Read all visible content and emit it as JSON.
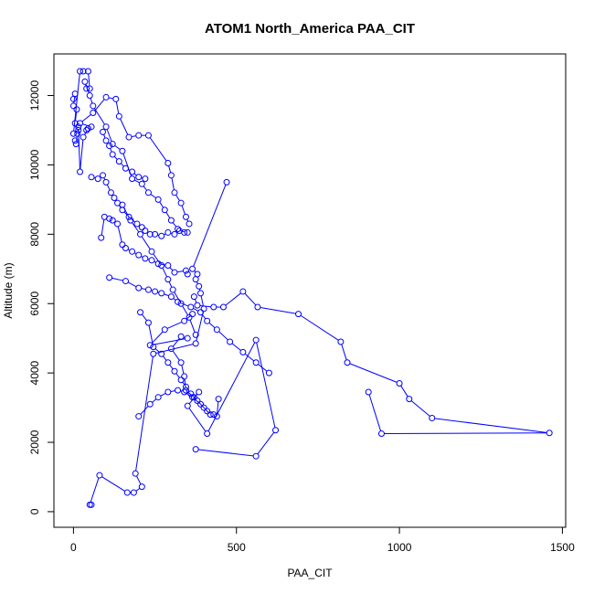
{
  "chart_data": {
    "type": "line",
    "title": "ATOM1 North_America PAA_CIT",
    "xlabel": "PAA_CIT",
    "ylabel": "Altitude (m)",
    "xlim": [
      -60,
      1510
    ],
    "ylim": [
      -450,
      13200
    ],
    "x_ticks": [
      0,
      500,
      1000,
      1500
    ],
    "y_ticks": [
      0,
      2000,
      4000,
      6000,
      8000,
      10000,
      12000
    ],
    "x_tick_labels": [
      "0",
      "500",
      "1000",
      "1500"
    ],
    "y_tick_labels": [
      "0",
      "2000",
      "4000",
      "6000",
      "8000",
      "10000",
      "12000"
    ],
    "series_color": "#0000ff",
    "marker": "open-circle",
    "legend": "none",
    "grid": false,
    "series": [
      {
        "x": [
          55,
          50,
          80,
          165,
          185,
          210,
          190,
          245,
          375,
          400,
          390,
          385,
          375,
          380,
          365,
          470
        ],
        "y": [
          200,
          200,
          1050,
          550,
          550,
          720,
          1100,
          4550,
          4850,
          5850,
          6300,
          6500,
          6700,
          6850,
          7000,
          9500
        ]
      },
      {
        "x": [
          375,
          560,
          620,
          560,
          410,
          350,
          385,
          370,
          345,
          340,
          330,
          300,
          330,
          350,
          235,
          280,
          340,
          365
        ],
        "y": [
          1800,
          1600,
          2350,
          4950,
          2250,
          3050,
          3450,
          3300,
          3500,
          3900,
          4300,
          4700,
          5050,
          5000,
          4800,
          5250,
          5500,
          5700
        ]
      },
      {
        "x": [
          370,
          380,
          430,
          460,
          520,
          565,
          690,
          820,
          840,
          1000,
          1030,
          1100,
          1460,
          945,
          905
        ],
        "y": [
          6200,
          5950,
          5900,
          5900,
          6350,
          5900,
          5700,
          4900,
          4300,
          3700,
          3250,
          2700,
          2270,
          2250,
          3450
        ]
      },
      {
        "x": [
          5,
          8,
          12,
          15,
          20,
          30,
          45,
          40,
          55,
          20,
          60,
          100,
          130,
          140,
          170,
          200,
          230,
          290,
          300,
          310,
          330,
          345,
          355
        ],
        "y": [
          10700,
          10600,
          10900,
          11100,
          9800,
          10800,
          11050,
          11000,
          11100,
          11200,
          11500,
          11950,
          11900,
          11400,
          10800,
          10850,
          10850,
          10050,
          9700,
          9200,
          8900,
          8500,
          8300
        ]
      },
      {
        "x": [
          0,
          5,
          0,
          10,
          5,
          15,
          0,
          20,
          30,
          45,
          50,
          40,
          35,
          50,
          60,
          100,
          120,
          150,
          180,
          210,
          230,
          260,
          280,
          300,
          320,
          340
        ],
        "y": [
          11900,
          12050,
          11700,
          11600,
          11200,
          11000,
          10900,
          12700,
          12700,
          12700,
          12200,
          12200,
          12400,
          12000,
          11700,
          11100,
          10600,
          10400,
          9600,
          9450,
          9200,
          9000,
          8700,
          8400,
          8150,
          8050
        ]
      },
      {
        "x": [
          55,
          75,
          90,
          100,
          115,
          125,
          135,
          150,
          170,
          195,
          210,
          220,
          235,
          250,
          270,
          290,
          310,
          325,
          350
        ],
        "y": [
          9650,
          9600,
          9700,
          9500,
          9200,
          9050,
          8900,
          8700,
          8500,
          8300,
          8200,
          8100,
          8000,
          8000,
          7950,
          8050,
          8000,
          8100,
          8050
        ]
      },
      {
        "x": [
          85,
          95,
          110,
          120,
          135,
          150,
          160,
          180,
          200,
          220,
          240,
          260,
          290,
          310,
          345,
          350
        ],
        "y": [
          7900,
          8500,
          8450,
          8400,
          8300,
          7700,
          7600,
          7500,
          7400,
          7300,
          7250,
          7150,
          7100,
          6900,
          6950,
          6850
        ]
      },
      {
        "x": [
          110,
          160,
          200,
          230,
          250,
          270,
          300,
          320,
          360,
          390,
          410,
          440,
          480,
          520,
          560,
          600
        ],
        "y": [
          6750,
          6650,
          6450,
          6400,
          6350,
          6300,
          6200,
          6050,
          5900,
          5750,
          5500,
          5250,
          4900,
          4600,
          4300,
          4000
        ]
      },
      {
        "x": [
          205,
          230,
          245,
          270,
          290,
          310,
          330,
          345,
          360,
          380,
          400,
          420
        ],
        "y": [
          5750,
          5450,
          4750,
          4550,
          4300,
          4050,
          3800,
          3600,
          3400,
          3200,
          3000,
          2800
        ]
      },
      {
        "x": [
          200,
          235,
          260,
          290,
          320,
          340,
          365,
          390,
          410,
          430,
          440,
          445
        ],
        "y": [
          2750,
          3100,
          3300,
          3450,
          3500,
          3450,
          3300,
          3100,
          2900,
          2800,
          2750,
          3250
        ]
      },
      {
        "x": [
          150,
          175,
          205,
          240,
          270,
          290,
          305,
          330,
          355,
          375
        ],
        "y": [
          8850,
          8400,
          8000,
          7500,
          7100,
          6700,
          6400,
          6000,
          5600,
          5100
        ]
      },
      {
        "x": [
          90,
          100,
          110,
          120,
          140,
          160,
          180,
          200,
          220
        ],
        "y": [
          10950,
          10700,
          10550,
          10300,
          10100,
          9900,
          9800,
          9650,
          9600
        ]
      }
    ]
  }
}
